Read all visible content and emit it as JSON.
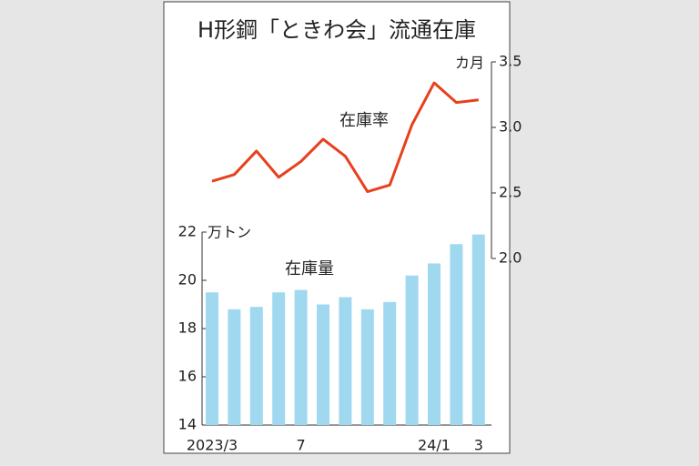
{
  "chart_data": {
    "type": "bar",
    "title": "H形鋼「ときわ会」流通在庫",
    "y_label": "万トン",
    "y2_label": "カ月",
    "categories": [
      "2023/3",
      null,
      null,
      null,
      "7",
      null,
      null,
      null,
      null,
      null,
      "24/1",
      null,
      "3"
    ],
    "series": [
      {
        "name": "在庫量",
        "type": "bar",
        "color": "#9fd8ef",
        "values": [
          19.5,
          18.8,
          18.9,
          19.5,
          19.6,
          19.0,
          19.3,
          18.8,
          19.1,
          20.2,
          20.7,
          21.5,
          21.9
        ]
      },
      {
        "name": "在庫率",
        "type": "line",
        "axis": "y2",
        "color": "#e8401c",
        "values": [
          2.59,
          2.64,
          2.82,
          2.62,
          2.74,
          2.91,
          2.78,
          2.51,
          2.56,
          3.02,
          3.34,
          3.19,
          3.21
        ]
      }
    ],
    "ylim": [
      14,
      22
    ],
    "yticks": [
      14,
      16,
      18,
      20,
      22
    ],
    "y2lim": [
      2,
      3.5
    ],
    "y2ticks": [
      {
        "value": 2,
        "label": "2.0"
      },
      2.5,
      {
        "value": 3,
        "label": "3.0"
      },
      3.5
    ]
  }
}
